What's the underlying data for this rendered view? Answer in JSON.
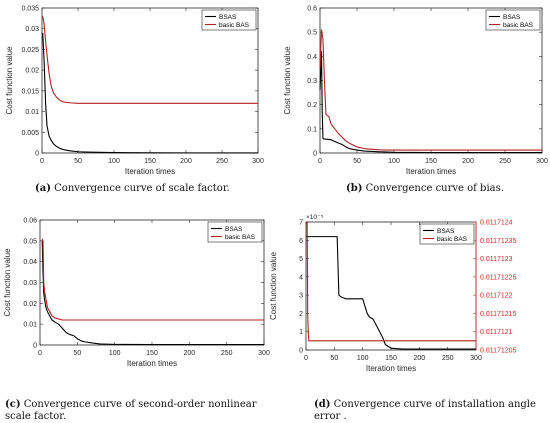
{
  "colors": {
    "bsas": "#000000",
    "basic": "#b22222",
    "axis": "#262626",
    "right_axis": "#d62728"
  },
  "captions": [
    {
      "label": "(a)",
      "text": "Convergence curve of scale factor."
    },
    {
      "label": "(b)",
      "text": "Convergence curve of bias."
    },
    {
      "label": "(c)",
      "text": "Convergence curve of second-order nonlinear scale factor."
    },
    {
      "label": "(d)",
      "text": "Convergence curve of installation angle error ."
    }
  ],
  "chart_data": [
    {
      "id": "a",
      "type": "line",
      "xlabel": "Iteration times",
      "ylabel": "Cost function value",
      "xlim": [
        0,
        300
      ],
      "ylim": [
        0,
        0.035
      ],
      "xticks": [
        0,
        50,
        100,
        150,
        200,
        250,
        300
      ],
      "yticks": [
        0,
        0.005,
        0.01,
        0.015,
        0.02,
        0.025,
        0.03,
        0.035
      ],
      "yticklabels": [
        "0",
        "0.005",
        "0.01",
        "0.015",
        "0.02",
        "0.025",
        "0.03",
        "0.035"
      ],
      "legend": "top-right",
      "series": [
        {
          "name": "BSAS",
          "key": "bsas",
          "x": [
            1,
            3,
            5,
            7,
            10,
            13,
            16,
            20,
            25,
            30,
            40,
            50,
            70,
            100,
            150,
            200,
            300
          ],
          "y": [
            0.029,
            0.022,
            0.012,
            0.0065,
            0.004,
            0.003,
            0.0022,
            0.0016,
            0.0011,
            0.0008,
            0.0005,
            0.0003,
            0.0002,
            0.0001,
            5e-05,
            3e-05,
            2e-05
          ]
        },
        {
          "name": "basic BAS",
          "key": "basic",
          "x": [
            1,
            3,
            5,
            8,
            10,
            13,
            16,
            20,
            25,
            30,
            40,
            50,
            70,
            100,
            300
          ],
          "y": [
            0.033,
            0.031,
            0.027,
            0.022,
            0.019,
            0.016,
            0.0145,
            0.0135,
            0.0127,
            0.0123,
            0.0121,
            0.012,
            0.012,
            0.012,
            0.012
          ]
        }
      ]
    },
    {
      "id": "b",
      "type": "line",
      "xlabel": "Iteration times",
      "ylabel": "Cost function value",
      "xlim": [
        0,
        300
      ],
      "ylim": [
        0,
        0.6
      ],
      "xticks": [
        0,
        50,
        100,
        150,
        200,
        250,
        300
      ],
      "yticks": [
        0,
        0.1,
        0.2,
        0.3,
        0.4,
        0.5,
        0.6
      ],
      "yticklabels": [
        "0",
        "0.1",
        "0.2",
        "0.3",
        "0.4",
        "0.5",
        "0.6"
      ],
      "legend": "top-right",
      "series": [
        {
          "name": "BSAS",
          "key": "bsas",
          "x": [
            0,
            2,
            3,
            4,
            5,
            15,
            18,
            22,
            26,
            30,
            35,
            40,
            50,
            60,
            80,
            100,
            150,
            300
          ],
          "y": [
            0.26,
            0.42,
            0.17,
            0.06,
            0.058,
            0.055,
            0.05,
            0.045,
            0.04,
            0.035,
            0.025,
            0.018,
            0.012,
            0.008,
            0.005,
            0.003,
            0.002,
            0.002
          ]
        },
        {
          "name": "basic BAS",
          "key": "basic",
          "x": [
            0,
            2,
            4,
            6,
            8,
            10,
            12,
            15,
            20,
            25,
            30,
            35,
            40,
            50,
            60,
            80,
            100,
            150,
            300
          ],
          "y": [
            0.35,
            0.51,
            0.47,
            0.3,
            0.16,
            0.155,
            0.15,
            0.12,
            0.1,
            0.08,
            0.065,
            0.05,
            0.04,
            0.025,
            0.018,
            0.013,
            0.012,
            0.012,
            0.012
          ]
        }
      ]
    },
    {
      "id": "c",
      "type": "line",
      "xlabel": "Iteration times",
      "ylabel": "Cost function value",
      "xlim": [
        0,
        300
      ],
      "ylim": [
        0,
        0.06
      ],
      "xticks": [
        0,
        50,
        100,
        150,
        200,
        250,
        300
      ],
      "yticks": [
        0,
        0.01,
        0.02,
        0.03,
        0.04,
        0.05,
        0.06
      ],
      "yticklabels": [
        "0",
        "0.01",
        "0.02",
        "0.03",
        "0.04",
        "0.05",
        "0.06"
      ],
      "legend": "top-right",
      "series": [
        {
          "name": "BSAS",
          "key": "bsas",
          "x": [
            3,
            4,
            5,
            6,
            8,
            10,
            13,
            16,
            20,
            25,
            30,
            35,
            40,
            45,
            50,
            55,
            60,
            70,
            80,
            100,
            150,
            300
          ],
          "y": [
            0.05,
            0.035,
            0.025,
            0.022,
            0.018,
            0.016,
            0.014,
            0.012,
            0.011,
            0.01,
            0.008,
            0.006,
            0.005,
            0.0045,
            0.003,
            0.002,
            0.0015,
            0.001,
            0.0005,
            0.0003,
            0.0002,
            0.0002
          ]
        },
        {
          "name": "basic BAS",
          "key": "basic",
          "x": [
            3,
            4,
            5,
            6,
            8,
            10,
            13,
            16,
            20,
            25,
            30,
            40,
            50,
            300
          ],
          "y": [
            0.051,
            0.05,
            0.03,
            0.026,
            0.022,
            0.018,
            0.016,
            0.014,
            0.013,
            0.0125,
            0.012,
            0.012,
            0.012,
            0.012
          ]
        }
      ]
    },
    {
      "id": "d",
      "type": "line",
      "xlabel": "Iteration times",
      "ylabel": "Cost function value",
      "xlim": [
        0,
        300
      ],
      "ylim": [
        0,
        7
      ],
      "xticks": [
        0,
        50,
        100,
        150,
        200,
        250,
        300
      ],
      "yticks": [
        0,
        1,
        2,
        3,
        4,
        5,
        6,
        7
      ],
      "yticklabels": [
        "0",
        "1",
        "2",
        "3",
        "4",
        "5",
        "6",
        "7"
      ],
      "y_exponent": "×10⁻⁵",
      "y2lim": [
        0.01171205,
        0.0117124
      ],
      "y2ticks": [
        0.01171205,
        0.0117121,
        0.01171215,
        0.0117122,
        0.01171225,
        0.0117123,
        0.01171235,
        0.0117124
      ],
      "y2ticklabels": [
        "0.01171205",
        "0.0117121",
        "0.01171215",
        "0.0117122",
        "0.01171225",
        "0.0117123",
        "0.01171235",
        "0.0117124"
      ],
      "legend": "top-right",
      "series": [
        {
          "name": "BSAS",
          "key": "bsas",
          "axis": "left",
          "x": [
            0,
            55,
            58,
            62,
            70,
            80,
            100,
            108,
            112,
            118,
            125,
            130,
            135,
            140,
            150,
            170,
            300
          ],
          "y": [
            6.2,
            6.2,
            3.0,
            2.9,
            2.8,
            2.8,
            2.8,
            2.0,
            1.8,
            1.7,
            1.3,
            1.0,
            0.7,
            0.3,
            0.1,
            0.05,
            0.05
          ]
        },
        {
          "name": "basic BAS",
          "key": "basic",
          "axis": "right",
          "x": [
            0,
            2,
            3,
            4,
            5,
            6,
            10,
            300
          ],
          "y": [
            0.0117124,
            0.0117124,
            0.01171215,
            0.0117121,
            0.011712075,
            0.011712075,
            0.011712075,
            0.011712075
          ]
        }
      ]
    }
  ]
}
